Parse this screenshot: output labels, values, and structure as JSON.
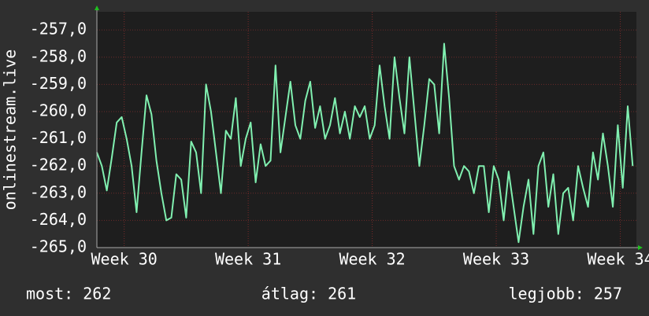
{
  "chart_data": {
    "type": "line",
    "y_label": "onlinestream.live",
    "x": [
      29.78,
      29.82,
      29.86,
      29.9,
      29.94,
      29.98,
      30.02,
      30.06,
      30.1,
      30.14,
      30.18,
      30.22,
      30.26,
      30.3,
      30.34,
      30.38,
      30.42,
      30.46,
      30.5,
      30.54,
      30.58,
      30.62,
      30.66,
      30.7,
      30.74,
      30.78,
      30.82,
      30.86,
      30.9,
      30.94,
      30.98,
      31.02,
      31.06,
      31.1,
      31.14,
      31.18,
      31.22,
      31.26,
      31.3,
      31.34,
      31.38,
      31.42,
      31.46,
      31.5,
      31.54,
      31.58,
      31.62,
      31.66,
      31.7,
      31.74,
      31.78,
      31.82,
      31.86,
      31.9,
      31.94,
      31.98,
      32.02,
      32.06,
      32.1,
      32.14,
      32.18,
      32.22,
      32.26,
      32.3,
      32.34,
      32.38,
      32.42,
      32.46,
      32.5,
      32.54,
      32.58,
      32.62,
      32.66,
      32.7,
      32.74,
      32.78,
      32.82,
      32.86,
      32.9,
      32.94,
      32.98,
      33.02,
      33.06,
      33.1,
      33.14,
      33.18,
      33.22,
      33.26,
      33.3,
      33.34,
      33.38,
      33.42,
      33.46,
      33.5,
      33.54,
      33.58,
      33.62,
      33.66,
      33.7,
      33.74,
      33.78,
      33.82,
      33.86,
      33.9,
      33.94,
      33.98,
      34.02,
      34.06,
      34.1
    ],
    "series": [
      {
        "color": "#80f0b0",
        "values": [
          -261.5,
          -262.0,
          -262.9,
          -261.7,
          -260.4,
          -260.2,
          -261.0,
          -262.0,
          -263.7,
          -261.5,
          -259.4,
          -260.1,
          -261.8,
          -263.0,
          -264.0,
          -263.9,
          -262.3,
          -262.5,
          -263.9,
          -261.1,
          -261.5,
          -263.0,
          -259.0,
          -260.0,
          -261.5,
          -263.0,
          -260.7,
          -261.0,
          -259.5,
          -262.0,
          -261.0,
          -260.4,
          -262.6,
          -261.2,
          -262.0,
          -261.8,
          -258.3,
          -261.5,
          -260.2,
          -258.9,
          -260.5,
          -261.0,
          -259.6,
          -258.9,
          -260.6,
          -259.8,
          -261.0,
          -260.5,
          -259.5,
          -260.8,
          -260.0,
          -261.0,
          -259.8,
          -260.2,
          -259.8,
          -261.0,
          -260.5,
          -258.3,
          -259.8,
          -261.0,
          -258.0,
          -259.5,
          -260.8,
          -258.0,
          -260.0,
          -262.0,
          -260.5,
          -258.8,
          -259.0,
          -260.8,
          -257.5,
          -259.5,
          -262.0,
          -262.5,
          -262.0,
          -262.2,
          -263.0,
          -262.0,
          -262.0,
          -263.7,
          -262.0,
          -262.5,
          -264.0,
          -262.2,
          -263.5,
          -264.8,
          -263.5,
          -262.5,
          -264.5,
          -262.0,
          -261.5,
          -263.5,
          -262.3,
          -264.5,
          -263.0,
          -262.8,
          -264.0,
          -262.0,
          -262.8,
          -263.5,
          -261.5,
          -262.5,
          -260.8,
          -262.0,
          -263.5,
          -260.5,
          -262.8,
          -259.8,
          -262.0
        ]
      }
    ],
    "xlim": [
      29.78,
      34.13
    ],
    "xticks": [
      {
        "value": 30,
        "label": "Week 30"
      },
      {
        "value": 31,
        "label": "Week 31"
      },
      {
        "value": 32,
        "label": "Week 32"
      },
      {
        "value": 33,
        "label": "Week 33"
      },
      {
        "value": 34,
        "label": "Week 34"
      }
    ],
    "ylim": [
      -265,
      -256.33
    ],
    "yticks": [
      {
        "value": -265,
        "label": "-265,0"
      },
      {
        "value": -264,
        "label": "-264,0"
      },
      {
        "value": -263,
        "label": "-263,0"
      },
      {
        "value": -262,
        "label": "-262,0"
      },
      {
        "value": -261,
        "label": "-261,0"
      },
      {
        "value": -260,
        "label": "-260,0"
      },
      {
        "value": -259,
        "label": "-259,0"
      },
      {
        "value": -258,
        "label": "-258,0"
      },
      {
        "value": -257,
        "label": "-257,0"
      }
    ],
    "grid": true,
    "stats": [
      "most: 262",
      "átlag: 261",
      "legjobb: 257"
    ]
  }
}
